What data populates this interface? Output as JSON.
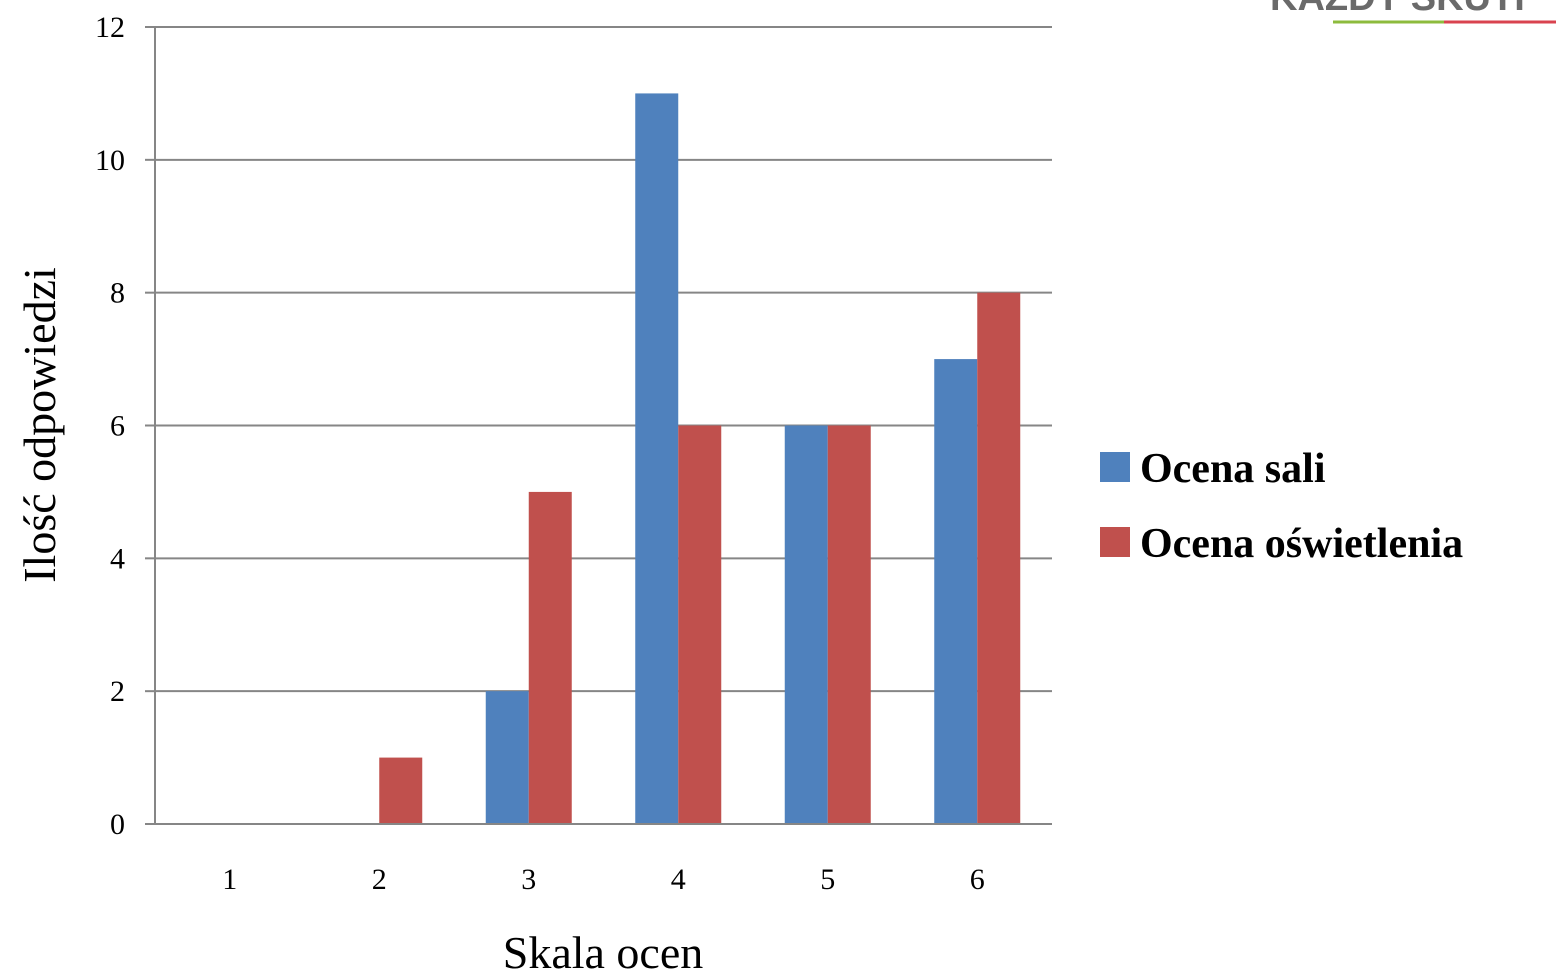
{
  "logo": {
    "text": "KAŻDY SKUTI",
    "colors": [
      "#8dbb3d",
      "#d9434f"
    ]
  },
  "chart_data": {
    "type": "bar",
    "categories": [
      "1",
      "2",
      "3",
      "4",
      "5",
      "6"
    ],
    "series": [
      {
        "name": "Ocena sali",
        "values": [
          0,
          0,
          2,
          11,
          6,
          7
        ],
        "color": "#4f81bd"
      },
      {
        "name": "Ocena oświetlenia",
        "values": [
          0,
          1,
          5,
          6,
          6,
          8
        ],
        "color": "#c0504d"
      }
    ],
    "xlabel": "Skala ocen",
    "ylabel": "Ilość odpowiedzi",
    "ylim": [
      0,
      12
    ],
    "yticks": [
      "0",
      "2",
      "4",
      "6",
      "8",
      "10",
      "12"
    ],
    "grid": true,
    "legend_position": "right",
    "gridline_color": "#868686"
  }
}
